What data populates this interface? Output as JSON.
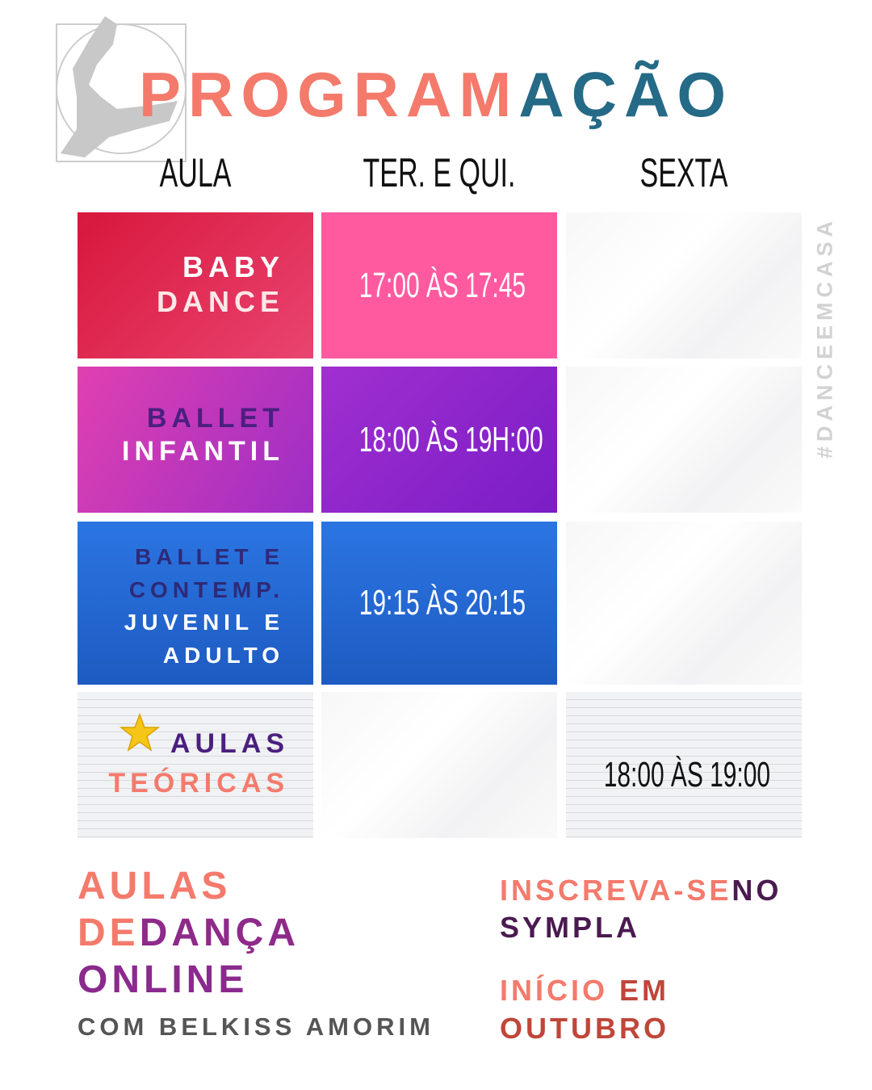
{
  "title": {
    "part1": "PROGRAM",
    "part2": "AÇÃO"
  },
  "table": {
    "headers": [
      "AULA",
      "TER. E QUI.",
      "SEXTA"
    ],
    "rows": [
      {
        "class": [
          "BABY",
          "DANCE"
        ],
        "tue_thu": "17:00 ÀS 17:45"
      },
      {
        "class": [
          "BALLET",
          "INFANTIL"
        ],
        "tue_thu": "18:00 ÀS 19H:00"
      },
      {
        "class": [
          "BALLET E",
          "CONTEMP.",
          "JUVENIL E",
          "ADULTO"
        ],
        "tue_thu": "19:15 ÀS 20:15"
      },
      {
        "class": [
          "AULAS",
          "TEÓRICAS"
        ],
        "friday": "18:00 ÀS 19:00"
      }
    ]
  },
  "hashtag": "#DANCEEMCASA",
  "footer_left": {
    "line1": "AULAS",
    "line2a": "DE",
    "line2b": "DANÇA",
    "line3": "ONLINE",
    "subtitle": "COM BELKISS AMORIM"
  },
  "footer_right": {
    "line1a": "INSCREVA-SE",
    "line1b": "NO",
    "line2": "SYMPLA",
    "line3a": "INÍCIO",
    "line3b": "EM",
    "line4": "OUTUBRO"
  }
}
